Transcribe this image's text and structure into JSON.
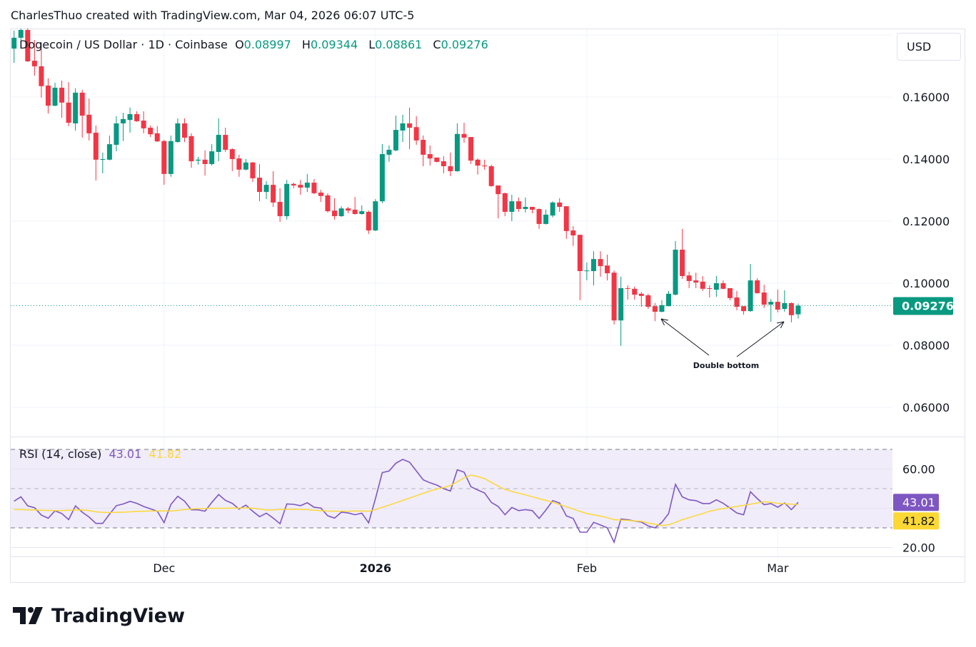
{
  "credit": "CharlesThuo created with TradingView.com, Mar 04, 2026 06:07 UTC-5",
  "legend": {
    "symbol": "Dogecoin / US Dollar · 1D · Coinbase",
    "o_label": "O",
    "o": "0.08997",
    "h_label": "H",
    "h": "0.09344",
    "l_label": "L",
    "l": "0.08861",
    "c_label": "C",
    "c": "0.09276"
  },
  "currency_button": "USD",
  "rsi_legend": {
    "name": "RSI (14, close)",
    "rsi": "43.01",
    "ma": "41.82"
  },
  "logo_text": "TradingView",
  "colors": {
    "up": "#089981",
    "down": "#f23645",
    "rsi": "#7e57c2",
    "rsi_ma": "#fdd835",
    "rsi_band": "#f0ecf9"
  },
  "chart_data": [
    {
      "type": "candlestick",
      "interval": "1D",
      "price_axis": {
        "ticks": [
          "0.16000",
          "0.14000",
          "0.12000",
          "0.10000",
          "0.08000",
          "0.06000"
        ],
        "tick_values": [
          0.16,
          0.14,
          0.12,
          0.1,
          0.08,
          0.06
        ]
      },
      "time_axis": {
        "ticks": [
          {
            "label": "Dec",
            "date": "2025-12-01"
          },
          {
            "label": "2026",
            "date": "2026-01-01"
          },
          {
            "label": "Feb",
            "date": "2026-02-01"
          },
          {
            "label": "Mar",
            "date": "2026-03-01"
          }
        ]
      },
      "last_price": "0.09276",
      "annotation": {
        "text": "Double bottom",
        "points": [
          "2026-02-14",
          "2026-03-02"
        ]
      },
      "candles_columns": [
        "date",
        "open",
        "high",
        "low",
        "close"
      ],
      "candles": [
        [
          "2025-11-09",
          0.1756,
          0.1814,
          0.171,
          0.1791
        ],
        [
          "2025-11-10",
          0.1791,
          0.1821,
          0.1784,
          0.1816
        ],
        [
          "2025-11-11",
          0.1816,
          0.1821,
          0.1713,
          0.1715
        ],
        [
          "2025-11-12",
          0.1717,
          0.1784,
          0.1669,
          0.1699
        ],
        [
          "2025-11-13",
          0.1699,
          0.1775,
          0.1598,
          0.1635
        ],
        [
          "2025-11-14",
          0.1637,
          0.166,
          0.1547,
          0.1572
        ],
        [
          "2025-11-15",
          0.1572,
          0.1646,
          0.157,
          0.163
        ],
        [
          "2025-11-16",
          0.163,
          0.1653,
          0.1533,
          0.1582
        ],
        [
          "2025-11-17",
          0.1582,
          0.1648,
          0.1506,
          0.1517
        ],
        [
          "2025-11-18",
          0.1515,
          0.1628,
          0.1492,
          0.1614
        ],
        [
          "2025-11-19",
          0.1614,
          0.1623,
          0.1469,
          0.154
        ],
        [
          "2025-11-20",
          0.1543,
          0.1595,
          0.146,
          0.1483
        ],
        [
          "2025-11-21",
          0.1485,
          0.1508,
          0.1331,
          0.1398
        ],
        [
          "2025-11-22",
          0.1398,
          0.1421,
          0.1354,
          0.14
        ],
        [
          "2025-11-23",
          0.1398,
          0.1476,
          0.1396,
          0.1448
        ],
        [
          "2025-11-24",
          0.1446,
          0.1538,
          0.1425,
          0.1515
        ],
        [
          "2025-11-25",
          0.1515,
          0.1549,
          0.1458,
          0.1529
        ],
        [
          "2025-11-26",
          0.1526,
          0.1566,
          0.1485,
          0.1545
        ],
        [
          "2025-11-27",
          0.1545,
          0.1554,
          0.152,
          0.1522
        ],
        [
          "2025-11-28",
          0.1524,
          0.1554,
          0.1483,
          0.1499
        ],
        [
          "2025-11-29",
          0.1501,
          0.1508,
          0.1471,
          0.148
        ],
        [
          "2025-11-30",
          0.1483,
          0.1506,
          0.1455,
          0.1457
        ],
        [
          "2025-12-01",
          0.1458,
          0.1462,
          0.1317,
          0.1352
        ],
        [
          "2025-12-02",
          0.1352,
          0.1476,
          0.1343,
          0.1458
        ],
        [
          "2025-12-03",
          0.1455,
          0.1531,
          0.1453,
          0.1515
        ],
        [
          "2025-12-04",
          0.1515,
          0.1531,
          0.1455,
          0.1469
        ],
        [
          "2025-12-05",
          0.1474,
          0.1483,
          0.1372,
          0.1393
        ],
        [
          "2025-12-06",
          0.1395,
          0.1407,
          0.1382,
          0.1398
        ],
        [
          "2025-12-07",
          0.1398,
          0.1428,
          0.1347,
          0.1384
        ],
        [
          "2025-12-08",
          0.1384,
          0.1448,
          0.1379,
          0.1425
        ],
        [
          "2025-12-09",
          0.1423,
          0.1531,
          0.1393,
          0.1478
        ],
        [
          "2025-12-10",
          0.1478,
          0.1501,
          0.1423,
          0.143
        ],
        [
          "2025-12-11",
          0.1432,
          0.1435,
          0.1361,
          0.14
        ],
        [
          "2025-12-12",
          0.1402,
          0.1414,
          0.1343,
          0.1366
        ],
        [
          "2025-12-13",
          0.1366,
          0.14,
          0.1364,
          0.1389
        ],
        [
          "2025-12-14",
          0.1389,
          0.1391,
          0.1326,
          0.1338
        ],
        [
          "2025-12-15",
          0.134,
          0.1384,
          0.1264,
          0.1294
        ],
        [
          "2025-12-16",
          0.1294,
          0.1329,
          0.1271,
          0.1317
        ],
        [
          "2025-12-17",
          0.1317,
          0.1361,
          0.1246,
          0.126
        ],
        [
          "2025-12-18",
          0.1262,
          0.1306,
          0.1198,
          0.1216
        ],
        [
          "2025-12-19",
          0.1216,
          0.1333,
          0.1205,
          0.132
        ],
        [
          "2025-12-20",
          0.132,
          0.1324,
          0.1306,
          0.1315
        ],
        [
          "2025-12-21",
          0.1317,
          0.1333,
          0.1285,
          0.1308
        ],
        [
          "2025-12-22",
          0.1308,
          0.1352,
          0.1294,
          0.1324
        ],
        [
          "2025-12-23",
          0.1324,
          0.1336,
          0.1287,
          0.129
        ],
        [
          "2025-12-24",
          0.1292,
          0.1301,
          0.1262,
          0.1281
        ],
        [
          "2025-12-25",
          0.1283,
          0.129,
          0.1228,
          0.1232
        ],
        [
          "2025-12-26",
          0.1234,
          0.1274,
          0.1205,
          0.1216
        ],
        [
          "2025-12-27",
          0.1216,
          0.1248,
          0.1214,
          0.1241
        ],
        [
          "2025-12-28",
          0.1241,
          0.1246,
          0.1225,
          0.1234
        ],
        [
          "2025-12-29",
          0.1237,
          0.1278,
          0.1221,
          0.1223
        ],
        [
          "2025-12-30",
          0.1223,
          0.1251,
          0.1221,
          0.1232
        ],
        [
          "2025-12-31",
          0.123,
          0.1234,
          0.1159,
          0.117
        ],
        [
          "2026-01-01",
          0.117,
          0.1271,
          0.1168,
          0.1264
        ],
        [
          "2026-01-02",
          0.1264,
          0.1448,
          0.1258,
          0.1416
        ],
        [
          "2026-01-03",
          0.1414,
          0.1444,
          0.1391,
          0.143
        ],
        [
          "2026-01-04",
          0.1428,
          0.154,
          0.1425,
          0.1494
        ],
        [
          "2026-01-05",
          0.1492,
          0.1543,
          0.1455,
          0.1515
        ],
        [
          "2026-01-06",
          0.1515,
          0.1566,
          0.1432,
          0.1501
        ],
        [
          "2026-01-07",
          0.1503,
          0.1538,
          0.1446,
          0.146
        ],
        [
          "2026-01-08",
          0.1462,
          0.1476,
          0.1377,
          0.1414
        ],
        [
          "2026-01-09",
          0.1416,
          0.1444,
          0.1379,
          0.1402
        ],
        [
          "2026-01-10",
          0.1405,
          0.1405,
          0.1389,
          0.1391
        ],
        [
          "2026-01-11",
          0.1393,
          0.1409,
          0.1354,
          0.1377
        ],
        [
          "2026-01-12",
          0.1377,
          0.1421,
          0.1345,
          0.1361
        ],
        [
          "2026-01-13",
          0.1361,
          0.1515,
          0.1359,
          0.1481
        ],
        [
          "2026-01-14",
          0.1481,
          0.1517,
          0.1453,
          0.1469
        ],
        [
          "2026-01-15",
          0.1471,
          0.1471,
          0.1384,
          0.1395
        ],
        [
          "2026-01-16",
          0.1398,
          0.1402,
          0.135,
          0.1379
        ],
        [
          "2026-01-17",
          0.1379,
          0.1398,
          0.1366,
          0.1377
        ],
        [
          "2026-01-18",
          0.1377,
          0.1382,
          0.1311,
          0.1313
        ],
        [
          "2026-01-19",
          0.1315,
          0.1315,
          0.1209,
          0.1287
        ],
        [
          "2026-01-20",
          0.129,
          0.1292,
          0.1216,
          0.123
        ],
        [
          "2026-01-21",
          0.123,
          0.1285,
          0.12,
          0.1264
        ],
        [
          "2026-01-22",
          0.1264,
          0.1276,
          0.123,
          0.1239
        ],
        [
          "2026-01-23",
          0.1239,
          0.1276,
          0.1228,
          0.1246
        ],
        [
          "2026-01-24",
          0.1246,
          0.1246,
          0.1225,
          0.1237
        ],
        [
          "2026-01-25",
          0.1239,
          0.1241,
          0.1175,
          0.1191
        ],
        [
          "2026-01-26",
          0.1191,
          0.1237,
          0.1189,
          0.1221
        ],
        [
          "2026-01-27",
          0.1218,
          0.1264,
          0.1212,
          0.126
        ],
        [
          "2026-01-28",
          0.126,
          0.1274,
          0.123,
          0.1246
        ],
        [
          "2026-01-29",
          0.1248,
          0.1248,
          0.1143,
          0.1168
        ],
        [
          "2026-01-30",
          0.117,
          0.1184,
          0.112,
          0.1154
        ],
        [
          "2026-01-31",
          0.1156,
          0.1156,
          0.0945,
          0.1039
        ],
        [
          "2026-02-01",
          0.1039,
          0.1067,
          0.1009,
          0.1041
        ],
        [
          "2026-02-02",
          0.1039,
          0.1103,
          0.0993,
          0.1078
        ],
        [
          "2026-02-03",
          0.1078,
          0.1103,
          0.1021,
          0.1055
        ],
        [
          "2026-02-04",
          0.1057,
          0.1092,
          0.1009,
          0.1032
        ],
        [
          "2026-02-05",
          0.1034,
          0.1041,
          0.0867,
          0.088
        ],
        [
          "2026-02-06",
          0.088,
          0.1021,
          0.0798,
          0.0984
        ],
        [
          "2026-02-07",
          0.0984,
          0.0993,
          0.0947,
          0.0982
        ],
        [
          "2026-02-08",
          0.0982,
          0.0989,
          0.0947,
          0.0963
        ],
        [
          "2026-02-09",
          0.0966,
          0.0972,
          0.0924,
          0.0959
        ],
        [
          "2026-02-10",
          0.0961,
          0.0966,
          0.0917,
          0.0924
        ],
        [
          "2026-02-11",
          0.0926,
          0.0936,
          0.0878,
          0.0908
        ],
        [
          "2026-02-12",
          0.0908,
          0.0945,
          0.0906,
          0.0929
        ],
        [
          "2026-02-13",
          0.0926,
          0.0975,
          0.0926,
          0.0966
        ],
        [
          "2026-02-14",
          0.0963,
          0.1136,
          0.0961,
          0.1108
        ],
        [
          "2026-02-15",
          0.1108,
          0.1175,
          0.1014,
          0.1023
        ],
        [
          "2026-02-16",
          0.1025,
          0.1037,
          0.0984,
          0.1007
        ],
        [
          "2026-02-17",
          0.1009,
          0.1034,
          0.0984,
          0.1002
        ],
        [
          "2026-02-18",
          0.1005,
          0.1023,
          0.0975,
          0.0982
        ],
        [
          "2026-02-19",
          0.0984,
          0.0993,
          0.0954,
          0.0982
        ],
        [
          "2026-02-20",
          0.0979,
          0.1023,
          0.0956,
          0.1
        ],
        [
          "2026-02-21",
          0.1,
          0.1009,
          0.098,
          0.0982
        ],
        [
          "2026-02-22",
          0.0984,
          0.0984,
          0.0945,
          0.0952
        ],
        [
          "2026-02-23",
          0.0954,
          0.0975,
          0.0913,
          0.0924
        ],
        [
          "2026-02-24",
          0.0926,
          0.0926,
          0.0899,
          0.091
        ],
        [
          "2026-02-25",
          0.091,
          0.1062,
          0.0908,
          0.1009
        ],
        [
          "2026-02-26",
          0.1009,
          0.1016,
          0.0966,
          0.0968
        ],
        [
          "2026-02-27",
          0.097,
          0.0995,
          0.092,
          0.0931
        ],
        [
          "2026-02-28",
          0.0931,
          0.0949,
          0.0876,
          0.094
        ],
        [
          "2026-03-01",
          0.094,
          0.0979,
          0.0906,
          0.0915
        ],
        [
          "2026-03-02",
          0.0917,
          0.0977,
          0.0908,
          0.0936
        ],
        [
          "2026-03-03",
          0.0936,
          0.0938,
          0.0874,
          0.0897
        ],
        [
          "2026-03-04",
          0.08997,
          0.09344,
          0.08861,
          0.09276
        ]
      ]
    },
    {
      "type": "line",
      "title": "RSI (14, close)",
      "y_axis": {
        "ticks": [
          "60.00",
          "20.00"
        ],
        "tick_values": [
          60,
          20
        ],
        "bands": [
          70,
          50,
          30
        ]
      },
      "series": [
        {
          "name": "RSI",
          "last": "43.01",
          "values": [
            43.6,
            45.8,
            41.2,
            40.3,
            36.5,
            34.9,
            38.7,
            37.3,
            34.2,
            41.2,
            38.0,
            35.5,
            32.3,
            32.3,
            37.0,
            41.3,
            42.2,
            43.5,
            42.5,
            40.9,
            39.7,
            38.5,
            32.7,
            41.9,
            46.1,
            43.6,
            39.2,
            39.2,
            38.5,
            43.0,
            47.0,
            44.0,
            42.5,
            39.6,
            41.6,
            38.5,
            35.7,
            37.5,
            35.0,
            32.1,
            42.2,
            42.0,
            41.3,
            42.8,
            40.5,
            40.1,
            36.2,
            35.0,
            38.0,
            37.6,
            36.7,
            37.5,
            32.6,
            45.0,
            58.2,
            59.0,
            63.0,
            64.9,
            63.5,
            59.0,
            54.5,
            53.0,
            51.8,
            50.0,
            48.8,
            59.6,
            58.4,
            51.0,
            49.3,
            47.8,
            43.0,
            40.9,
            36.7,
            40.4,
            38.8,
            39.3,
            38.8,
            34.8,
            39.1,
            43.9,
            42.7,
            36.1,
            34.8,
            27.8,
            27.8,
            32.8,
            31.5,
            30.0,
            22.7,
            34.5,
            34.2,
            33.5,
            33.0,
            31.0,
            30.0,
            32.8,
            37.3,
            52.2,
            45.8,
            44.3,
            43.9,
            42.4,
            42.4,
            44.3,
            42.5,
            40.1,
            37.6,
            36.7,
            48.4,
            44.9,
            41.8,
            42.4,
            40.5,
            42.7,
            39.3,
            43.01
          ]
        },
        {
          "name": "RSI MA",
          "last": "41.82",
          "values": [
            39.3,
            39.3,
            39.2,
            39.2,
            39.0,
            38.9,
            38.8,
            38.8,
            39.0,
            39.1,
            39.2,
            38.8,
            38.2,
            37.9,
            37.8,
            37.9,
            38.0,
            38.2,
            38.4,
            38.5,
            38.6,
            38.6,
            38.7,
            38.6,
            38.9,
            39.3,
            39.6,
            39.8,
            39.9,
            40.0,
            40.0,
            40.0,
            40.1,
            40.1,
            40.2,
            40.0,
            39.6,
            39.1,
            39.2,
            39.4,
            39.4,
            39.5,
            39.4,
            39.3,
            39.0,
            38.8,
            38.6,
            38.5,
            38.5,
            38.5,
            38.6,
            38.6,
            38.5,
            39.3,
            40.5,
            41.6,
            42.8,
            44.0,
            45.2,
            46.4,
            47.6,
            48.8,
            49.8,
            50.6,
            51.6,
            53.5,
            55.5,
            56.9,
            56.2,
            55.1,
            53.2,
            51.3,
            49.6,
            48.6,
            47.7,
            46.8,
            45.9,
            44.9,
            44.0,
            43.0,
            41.9,
            40.8,
            39.6,
            38.4,
            37.3,
            36.7,
            36.0,
            35.2,
            34.2,
            34.0,
            33.8,
            33.5,
            33.3,
            32.5,
            31.8,
            31.2,
            31.6,
            32.8,
            34.2,
            35.2,
            36.3,
            37.3,
            38.5,
            39.2,
            39.8,
            40.4,
            40.9,
            41.5,
            42.1,
            42.7,
            43.3,
            43.0,
            42.5,
            42.3,
            42.1,
            41.82
          ]
        }
      ]
    }
  ]
}
